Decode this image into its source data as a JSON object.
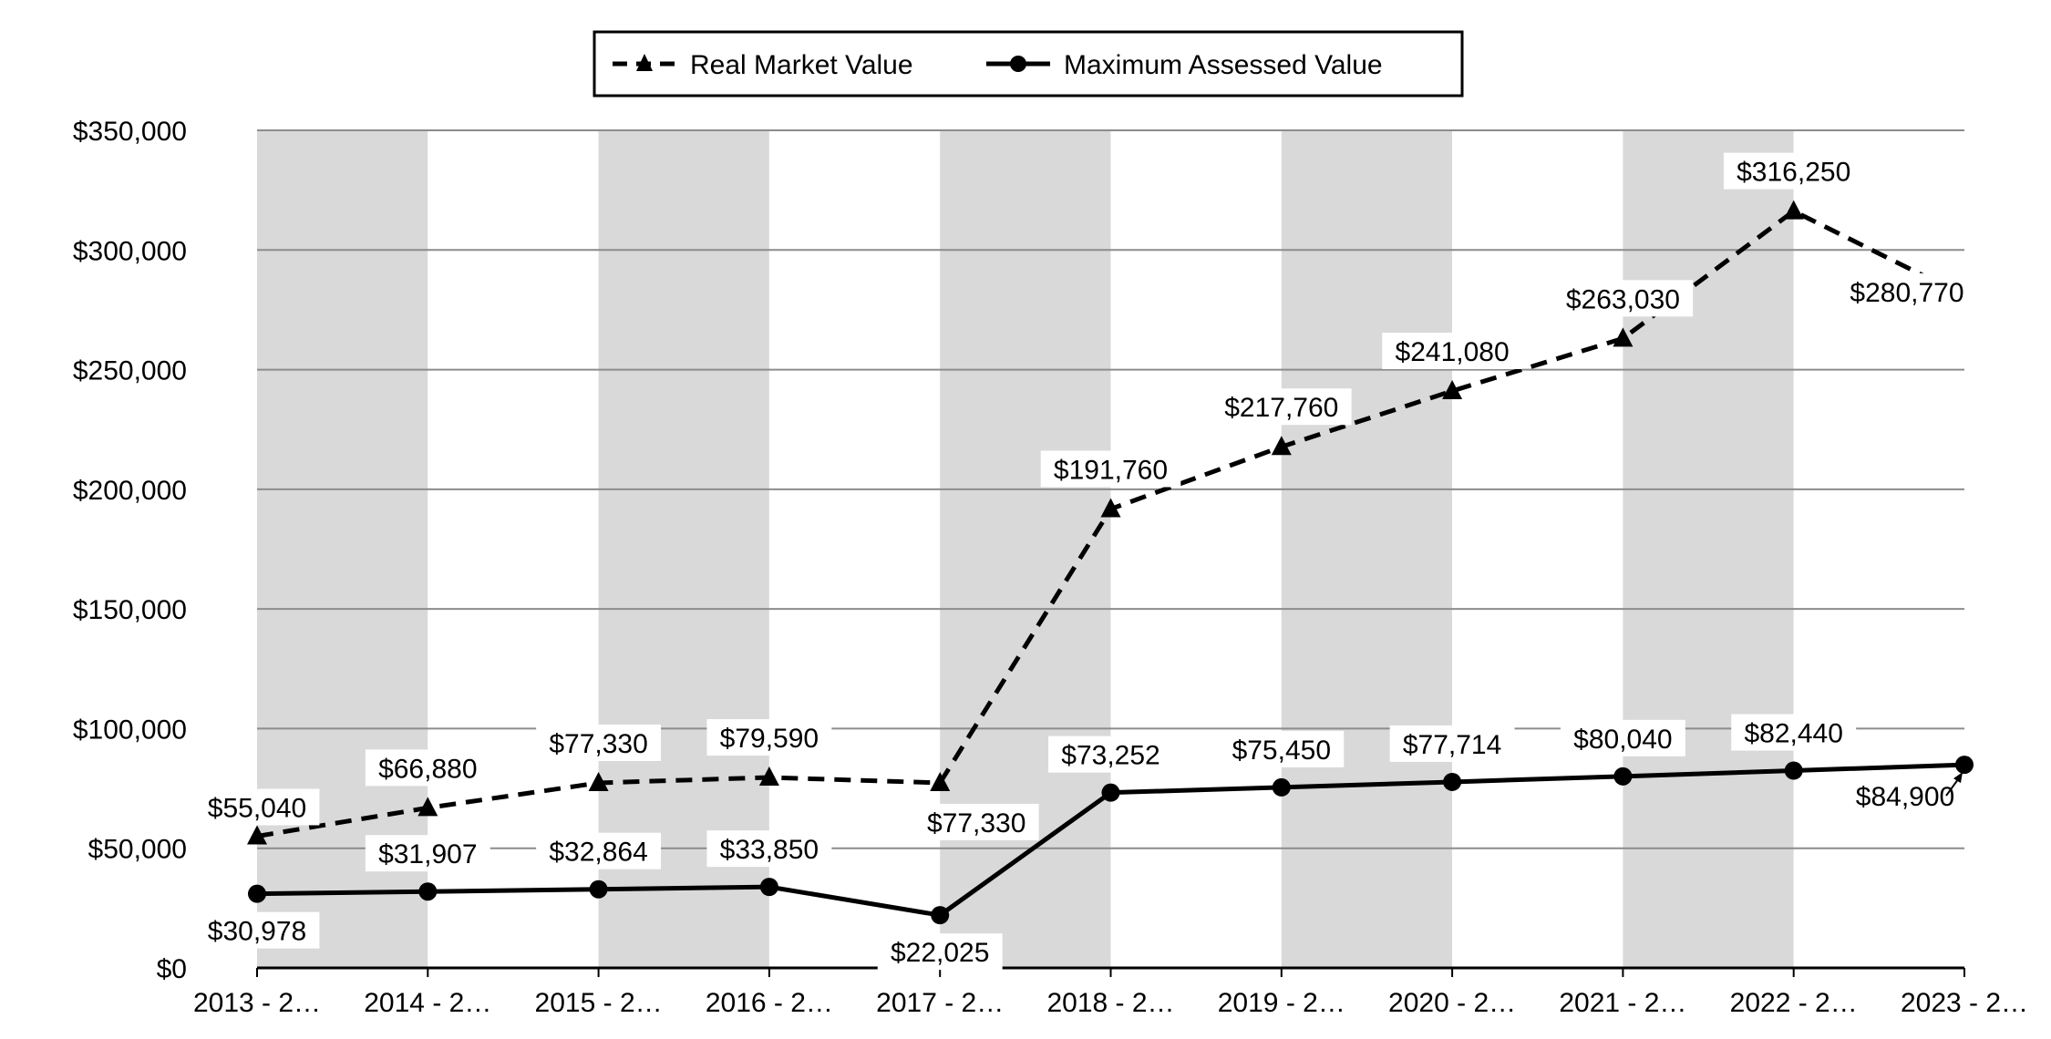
{
  "chart_data": {
    "type": "line",
    "categories": [
      "2013 - 2…",
      "2014 - 2…",
      "2015 - 2…",
      "2016 - 2…",
      "2017 - 2…",
      "2018 - 2…",
      "2019 - 2…",
      "2020 - 2…",
      "2021 - 2…",
      "2022 - 2…",
      "2023 - 2…"
    ],
    "ylim": [
      0,
      350000
    ],
    "yticks": [
      0,
      50000,
      100000,
      150000,
      200000,
      250000,
      300000,
      350000
    ],
    "ytick_labels": [
      "$0",
      "$50,000",
      "$100,000",
      "$150,000",
      "$200,000",
      "$250,000",
      "$300,000",
      "$350,000"
    ],
    "grid": "horizontal",
    "band_colors": [
      "#d9d9d9",
      "#ffffff"
    ],
    "legend": {
      "placement": "top-center",
      "entries": [
        "Real Market Value",
        "Maximum Assessed Value"
      ]
    },
    "series": [
      {
        "name": "Real Market Value",
        "style": "dashed",
        "marker": "triangle",
        "color": "#000000",
        "values": [
          55040,
          66880,
          77330,
          79590,
          77330,
          191760,
          217760,
          241080,
          263030,
          316250,
          280770
        ],
        "labels": [
          "$55,040",
          "$66,880",
          "$77,330",
          "$79,590",
          "$77,330",
          "$191,760",
          "$217,760",
          "$241,080",
          "$263,030",
          "$316,250",
          "$280,770"
        ]
      },
      {
        "name": "Maximum Assessed Value",
        "style": "solid",
        "marker": "circle",
        "color": "#000000",
        "values": [
          30978,
          31907,
          32864,
          33850,
          22025,
          73252,
          75450,
          77714,
          80040,
          82440,
          84900
        ],
        "labels": [
          "$30,978",
          "$31,907",
          "$32,864",
          "$33,850",
          "$22,025",
          "$73,252",
          "$75,450",
          "$77,714",
          "$80,040",
          "$82,440",
          "$84,900"
        ]
      }
    ]
  }
}
